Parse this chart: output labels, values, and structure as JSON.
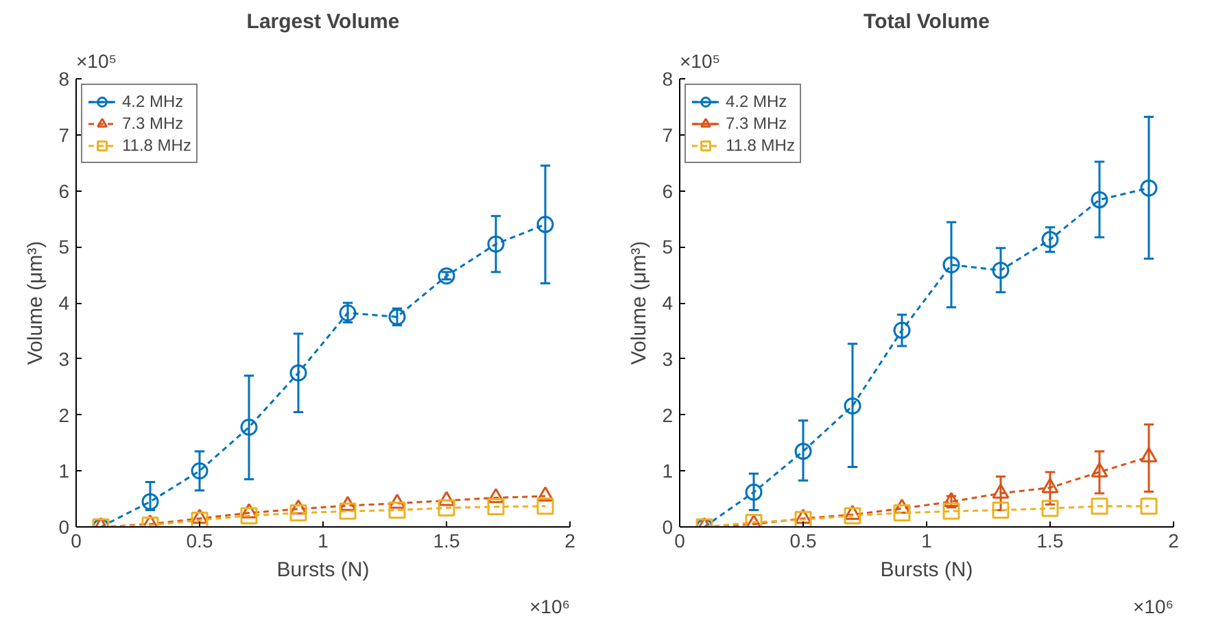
{
  "chart_data": [
    {
      "type": "line",
      "title": "Largest Volume",
      "xlabel": "Bursts (N)",
      "ylabel": "Volume (μm³)",
      "annotations": [
        "×10⁵",
        "×10⁶"
      ],
      "x": [
        0.1,
        0.3,
        0.5,
        0.7,
        0.9,
        1.1,
        1.3,
        1.5,
        1.7,
        1.9
      ],
      "xlim": [
        0,
        2
      ],
      "xticks": [
        0,
        0.5,
        1,
        1.5,
        2
      ],
      "ylim": [
        0,
        8
      ],
      "yticks": [
        0,
        1,
        2,
        3,
        4,
        5,
        6,
        7,
        8
      ],
      "grid": false,
      "legend": "top left",
      "line_style": "dashed",
      "series": [
        {
          "name": "4.2 MHz",
          "color": "#0072bd",
          "marker": "circle",
          "values": [
            0,
            0.45,
            1.0,
            1.78,
            2.75,
            3.82,
            3.75,
            4.48,
            5.05,
            5.4
          ],
          "errors": [
            null,
            [
              0.3,
              0.8
            ],
            [
              0.65,
              1.35
            ],
            [
              0.85,
              2.7
            ],
            [
              2.05,
              3.45
            ],
            [
              3.65,
              4.0
            ],
            [
              3.6,
              3.9
            ],
            [
              4.42,
              4.55
            ],
            [
              4.55,
              5.55
            ],
            [
              4.35,
              6.45
            ]
          ]
        },
        {
          "name": "7.3 MHz",
          "color": "#d95319",
          "marker": "triangle",
          "values": [
            0,
            0.05,
            0.15,
            0.25,
            0.32,
            0.38,
            0.42,
            0.47,
            0.52,
            0.55
          ]
        },
        {
          "name": "11.8 MHz",
          "color": "#edb120",
          "marker": "square",
          "values": [
            0,
            0.03,
            0.12,
            0.2,
            0.25,
            0.28,
            0.3,
            0.34,
            0.36,
            0.37
          ]
        }
      ]
    },
    {
      "type": "line",
      "title": "Total Volume",
      "xlabel": "Bursts (N)",
      "ylabel": "Volume (μm³)",
      "annotations": [
        "×10⁵",
        "×10⁶"
      ],
      "x": [
        0.1,
        0.3,
        0.5,
        0.7,
        0.9,
        1.1,
        1.3,
        1.5,
        1.7,
        1.9
      ],
      "xlim": [
        0,
        2
      ],
      "xticks": [
        0,
        0.5,
        1,
        1.5,
        2
      ],
      "ylim": [
        0,
        8
      ],
      "yticks": [
        0,
        1,
        2,
        3,
        4,
        5,
        6,
        7,
        8
      ],
      "grid": false,
      "legend": "top left",
      "line_style": "dashed",
      "series": [
        {
          "name": "4.2 MHz",
          "color": "#0072bd",
          "marker": "circle",
          "values": [
            0,
            0.62,
            1.35,
            2.16,
            3.51,
            4.68,
            4.58,
            5.13,
            5.84,
            6.05
          ],
          "errors": [
            null,
            [
              0.3,
              0.95
            ],
            [
              0.83,
              1.9
            ],
            [
              1.07,
              3.27
            ],
            [
              3.23,
              3.79
            ],
            [
              3.92,
              5.44
            ],
            [
              4.19,
              4.98
            ],
            [
              4.91,
              5.35
            ],
            [
              5.17,
              6.52
            ],
            [
              4.79,
              7.32
            ]
          ]
        },
        {
          "name": "7.3 MHz",
          "color": "#d95319",
          "marker": "triangle",
          "values": [
            0,
            0.05,
            0.15,
            0.22,
            0.33,
            0.45,
            0.6,
            0.7,
            0.98,
            1.25
          ],
          "errors": [
            null,
            null,
            null,
            null,
            null,
            [
              0.35,
              0.55
            ],
            [
              0.3,
              0.9
            ],
            [
              0.4,
              0.98
            ],
            [
              0.6,
              1.35
            ],
            [
              0.63,
              1.83
            ]
          ]
        },
        {
          "name": "11.8 MHz",
          "color": "#edb120",
          "marker": "square",
          "values": [
            0,
            0.08,
            0.13,
            0.2,
            0.25,
            0.28,
            0.3,
            0.33,
            0.37,
            0.37
          ]
        }
      ]
    }
  ]
}
